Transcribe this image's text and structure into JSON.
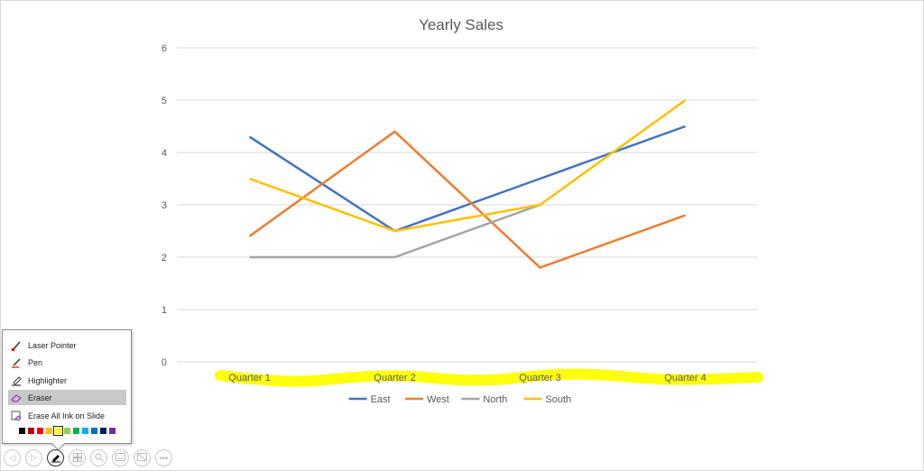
{
  "chart_data": {
    "type": "line",
    "title": "Yearly Sales",
    "categories": [
      "Quarter 1",
      "Quarter 2",
      "Quarter 3",
      "Quarter 4"
    ],
    "ylim": [
      0,
      6
    ],
    "yticks": [
      "0",
      "1",
      "2",
      "3",
      "4",
      "5",
      "6"
    ],
    "grid": true,
    "legend_position": "bottom",
    "series": [
      {
        "name": "East",
        "color": "#4472C4",
        "values": [
          4.3,
          2.5,
          3.5,
          4.5
        ]
      },
      {
        "name": "West",
        "color": "#ED7D31",
        "values": [
          2.4,
          4.4,
          1.8,
          2.8
        ]
      },
      {
        "name": "North",
        "color": "#A5A5A5",
        "values": [
          2.0,
          2.0,
          3.0,
          null
        ]
      },
      {
        "name": "South",
        "color": "#FFC000",
        "values": [
          3.5,
          2.5,
          3.0,
          5.0
        ]
      }
    ],
    "highlight_ink_color": "#FFFF00"
  },
  "ink_menu": {
    "items": [
      {
        "label": "Laser Pointer",
        "icon": "laser-pointer-icon"
      },
      {
        "label": "Pen",
        "icon": "pen-icon"
      },
      {
        "label": "Highlighter",
        "icon": "highlighter-icon"
      },
      {
        "label": "Eraser",
        "icon": "eraser-icon",
        "selected": true
      },
      {
        "label": "Erase All Ink on Slide",
        "icon": "erase-all-ink-icon"
      }
    ],
    "colors": [
      "#000000",
      "#C00000",
      "#FF0000",
      "#FFC000",
      "#FFFF00",
      "#92D050",
      "#00B050",
      "#00B0F0",
      "#0070C0",
      "#002060",
      "#7030A0"
    ],
    "active_color": "#FFFF00"
  },
  "toolbar": {
    "buttons": [
      {
        "name": "previous-slide-button",
        "icon": "previous-icon"
      },
      {
        "name": "next-slide-button",
        "icon": "next-icon"
      },
      {
        "name": "pen-tools-button",
        "icon": "pen-tool-icon",
        "active": true
      },
      {
        "name": "see-all-slides-button",
        "icon": "slides-icon"
      },
      {
        "name": "zoom-button",
        "icon": "zoom-icon"
      },
      {
        "name": "subtitles-button",
        "icon": "subtitles-icon"
      },
      {
        "name": "black-screen-button",
        "icon": "black-screen-icon"
      },
      {
        "name": "more-options-button",
        "icon": "more-icon"
      }
    ]
  }
}
